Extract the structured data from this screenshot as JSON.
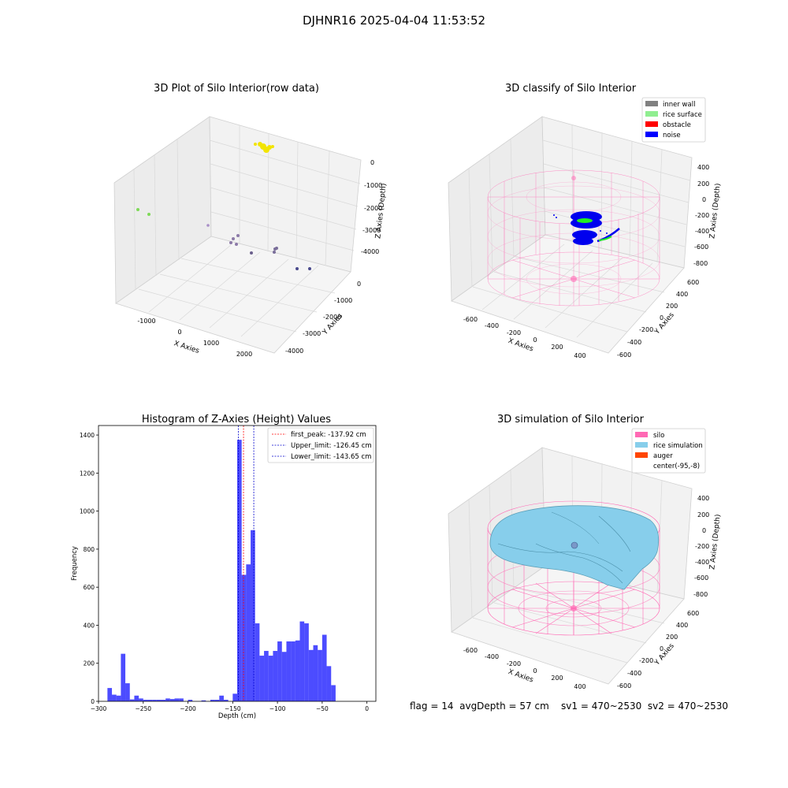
{
  "figure": {
    "suptitle": "DJHNR16 2025-04-04 11:53:52",
    "footer": "flag = 14  avgDepth = 57 cm    sv1 = 470~2530  sv2 = 470~2530"
  },
  "panels": {
    "raw": {
      "title": "3D Plot of Silo Interior(row data)",
      "xlabel": "X Axies",
      "ylabel": "Y Axies",
      "zlabel": "Z Axies (Depth)",
      "xticks": [
        "-1000",
        "0",
        "1000",
        "2000"
      ],
      "yticks": [
        "0",
        "-1000",
        "-2000",
        "-3000",
        "-4000"
      ],
      "zticks": [
        "0",
        "-1000",
        "-2000",
        "-3000",
        "-4000"
      ]
    },
    "classify": {
      "title": "3D classify of Silo Interior",
      "xlabel": "X Axies",
      "ylabel": "Y Axies",
      "zlabel": "Z Axies (Depth)",
      "xticks": [
        "-600",
        "-400",
        "-200",
        "0",
        "200",
        "400"
      ],
      "yticks": [
        "600",
        "400",
        "200",
        "0",
        "-200",
        "-400",
        "-600"
      ],
      "zticks": [
        "400",
        "200",
        "0",
        "-200",
        "-400",
        "-600",
        "-800"
      ],
      "legend": [
        {
          "label": "inner wall",
          "color": "#808080"
        },
        {
          "label": "rice surface",
          "color": "#90ee90"
        },
        {
          "label": "obstacle",
          "color": "#ff0000"
        },
        {
          "label": "noise",
          "color": "#0000ff"
        }
      ]
    },
    "simulation": {
      "title": "3D simulation of Silo Interior",
      "xlabel": "X Axies",
      "ylabel": "Y Axies",
      "zlabel": "Z Axies (Depth)",
      "xticks": [
        "-600",
        "-400",
        "-200",
        "0",
        "200",
        "400"
      ],
      "yticks": [
        "600",
        "400",
        "200",
        "0",
        "-200",
        "-400",
        "-600"
      ],
      "zticks": [
        "400",
        "200",
        "0",
        "-200",
        "-400",
        "-600",
        "-800"
      ],
      "legend": [
        {
          "label": "silo",
          "color": "#ff69b4"
        },
        {
          "label": "rice simulation",
          "color": "#87ceeb"
        },
        {
          "label": "auger",
          "color": "#ff4500"
        },
        {
          "label": "center(-95,-8)",
          "color": ""
        }
      ]
    }
  },
  "chart_data": [
    {
      "type": "bar",
      "title": "Histogram of Z-Axies (Height) Values",
      "xlabel": "Depth (cm)",
      "ylabel": "Frequency",
      "xlim": [
        -300,
        10
      ],
      "ylim": [
        0,
        1450
      ],
      "xticks": [
        -300,
        -250,
        -200,
        -150,
        -100,
        -50,
        0
      ],
      "yticks": [
        0,
        200,
        400,
        600,
        800,
        1000,
        1200,
        1400
      ],
      "bin_width": 5,
      "bins_start": [
        -290,
        -285,
        -280,
        -275,
        -270,
        -265,
        -260,
        -255,
        -250,
        -245,
        -240,
        -235,
        -230,
        -225,
        -220,
        -215,
        -210,
        -205,
        -200,
        -195,
        -190,
        -185,
        -180,
        -175,
        -170,
        -165,
        -160,
        -155,
        -150,
        -145,
        -140,
        -135,
        -130,
        -125,
        -120,
        -115,
        -110,
        -105,
        -100,
        -95,
        -90,
        -85,
        -80,
        -75,
        -70,
        -65,
        -60,
        -55,
        -50,
        -45,
        -40,
        -35,
        -30,
        -25,
        -20
      ],
      "values": [
        70,
        35,
        30,
        250,
        95,
        10,
        30,
        15,
        8,
        8,
        8,
        8,
        8,
        15,
        12,
        15,
        15,
        0,
        8,
        0,
        0,
        5,
        0,
        8,
        8,
        30,
        8,
        0,
        40,
        1375,
        665,
        720,
        900,
        410,
        240,
        265,
        240,
        265,
        315,
        260,
        315,
        315,
        320,
        420,
        410,
        270,
        295,
        270,
        350,
        185,
        85,
        0,
        0,
        0,
        0
      ],
      "bar_color": "#0000ff",
      "vlines": [
        {
          "label": "first_peak: -137.92 cm",
          "x": -137.92,
          "color": "#ff0000"
        },
        {
          "label": "Upper_limit: -126.45 cm",
          "x": -126.45,
          "color": "#0000cd"
        },
        {
          "label": "Lower_limit: -143.65 cm",
          "x": -143.65,
          "color": "#0000cd"
        }
      ],
      "legend_position": "top-right"
    }
  ]
}
